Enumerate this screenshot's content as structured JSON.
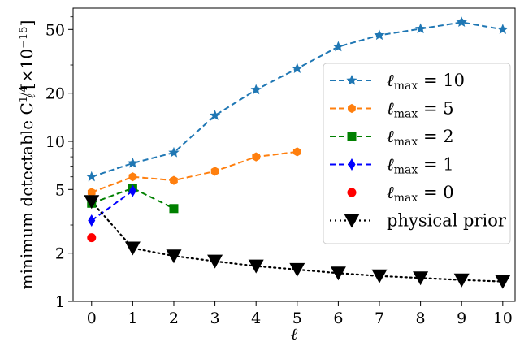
{
  "chart_data": {
    "type": "line",
    "title": "",
    "xlabel": "ℓ",
    "ylabel_main": "minimum detectable C",
    "ylabel_sub": "ℓ",
    "ylabel_sup": "1/4",
    "ylabel_suffix": "[×10",
    "ylabel_exp": "−15",
    "ylabel_close": "]",
    "x_ticks": [
      "0",
      "1",
      "2",
      "3",
      "4",
      "5",
      "6",
      "7",
      "8",
      "9",
      "10"
    ],
    "xlim": [
      -0.45,
      10.3
    ],
    "yscale": "log",
    "ylim": [
      1,
      68
    ],
    "y_major_ticks": [
      {
        "value": 1,
        "label": "1"
      },
      {
        "value": 2,
        "label": "2"
      },
      {
        "value": 5,
        "label": "5"
      },
      {
        "value": 10,
        "label": "10"
      },
      {
        "value": 20,
        "label": "20"
      },
      {
        "value": 50,
        "label": "50"
      }
    ],
    "y_minor_ticks": [
      3,
      4,
      6,
      7,
      8,
      9,
      30,
      40,
      60
    ],
    "grid": false,
    "legend_position": "right",
    "series": [
      {
        "name_base": "ℓ",
        "name_sub": "max",
        "name_tail": " = 10",
        "color": "#1f77b4",
        "marker": "star",
        "line": "dashed",
        "x": [
          0,
          1,
          2,
          3,
          4,
          5,
          6,
          7,
          8,
          9,
          10
        ],
        "y": [
          6.0,
          7.3,
          8.5,
          14.5,
          21.0,
          28.5,
          39.0,
          46.0,
          50.5,
          55.5,
          50.0
        ]
      },
      {
        "name_base": "ℓ",
        "name_sub": "max",
        "name_tail": " = 5",
        "color": "#ff7f0e",
        "marker": "hexagon",
        "line": "dashed",
        "x": [
          0,
          1,
          2,
          3,
          4,
          5
        ],
        "y": [
          4.8,
          6.0,
          5.7,
          6.5,
          8.0,
          8.6
        ]
      },
      {
        "name_base": "ℓ",
        "name_sub": "max",
        "name_tail": " = 2",
        "color": "#008000",
        "marker": "square",
        "line": "dashed",
        "x": [
          0,
          1,
          2
        ],
        "y": [
          4.1,
          5.1,
          3.8
        ]
      },
      {
        "name_base": "ℓ",
        "name_sub": "max",
        "name_tail": " = 1",
        "color": "#0000ff",
        "marker": "diamond",
        "line": "dashed",
        "x": [
          0,
          1
        ],
        "y": [
          3.2,
          4.9
        ]
      },
      {
        "name_base": "ℓ",
        "name_sub": "max",
        "name_tail": " = 0",
        "color": "#ff0000",
        "marker": "circle",
        "line": "none",
        "x": [
          0
        ],
        "y": [
          2.5
        ]
      },
      {
        "name_base": "physical prior",
        "name_sub": "",
        "name_tail": "",
        "color": "#000000",
        "marker": "triangle-down",
        "line": "dotted",
        "x": [
          0,
          1,
          2,
          3,
          4,
          5,
          6,
          7,
          8,
          9,
          10
        ],
        "y": [
          4.2,
          2.15,
          1.92,
          1.78,
          1.66,
          1.58,
          1.5,
          1.44,
          1.4,
          1.36,
          1.33
        ]
      }
    ]
  }
}
